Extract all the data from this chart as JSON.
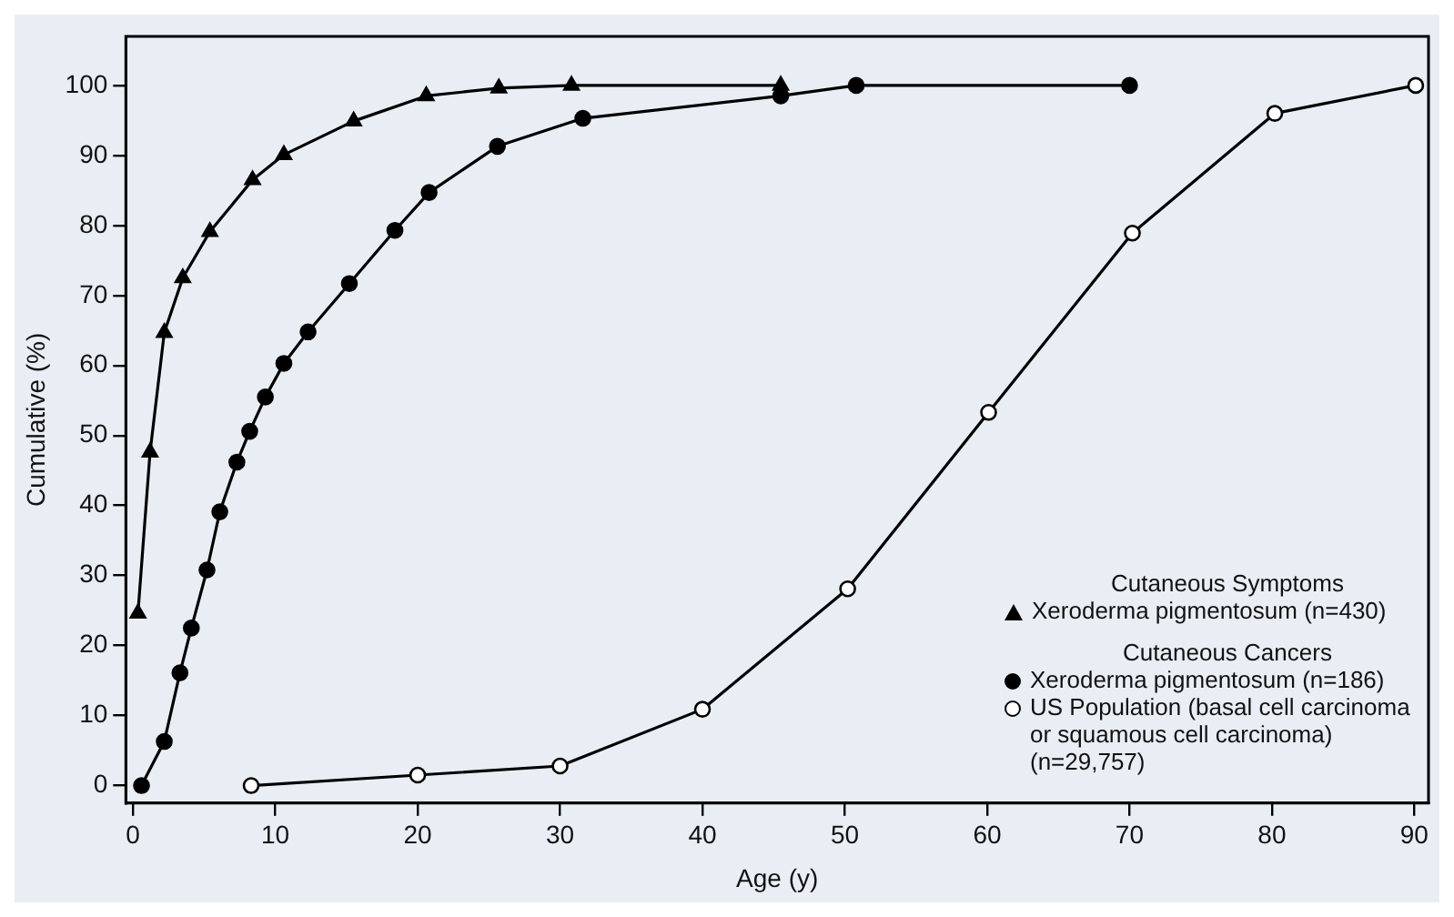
{
  "chart_data": {
    "type": "line",
    "xlabel": "Age (y)",
    "ylabel": "Cumulative (%)",
    "xlim": [
      -0.5,
      91
    ],
    "ylim": [
      -2.5,
      107
    ],
    "xticks": [
      0,
      10,
      20,
      30,
      40,
      50,
      60,
      70,
      80,
      90
    ],
    "yticks": [
      0,
      10,
      20,
      30,
      40,
      50,
      60,
      70,
      80,
      90,
      100
    ],
    "grid": false,
    "legend": "bottom right",
    "line_style": "solid",
    "annotations": [
      "Cutaneous Symptoms",
      "Cutaneous Cancers"
    ],
    "series": [
      {
        "name": "Xeroderma pigmentosum (n=430)",
        "color": "#000000",
        "marker": "triangle",
        "x": [
          0.35,
          1.2,
          2.2,
          3.5,
          5.4,
          8.4,
          10.6,
          15.5,
          20.6,
          25.7,
          30.8,
          45.5
        ],
        "values": [
          24.6,
          47.6,
          64.7,
          72.5,
          79.1,
          86.5,
          90.1,
          94.9,
          98.5,
          99.6,
          100,
          100
        ]
      },
      {
        "name": "Xeroderma pigmentosum (n=186)",
        "color": "#000000",
        "marker": "circle",
        "x": [
          0.6,
          2.2,
          3.3,
          4.1,
          5.2,
          6.1,
          7.3,
          8.2,
          9.3,
          10.6,
          12.3,
          15.2,
          18.4,
          20.8,
          25.6,
          31.6,
          45.5,
          50.8,
          70
        ],
        "values": [
          0,
          6.3,
          16.1,
          22.5,
          30.8,
          39.1,
          46.2,
          50.6,
          55.5,
          60.3,
          64.8,
          71.7,
          79.3,
          84.7,
          91.3,
          95.3,
          98.5,
          100,
          100
        ]
      },
      {
        "name": "US Population (basal cell carcinoma or squamous cell carcinoma) (n=29,757)",
        "color": "#000000",
        "marker": "circle",
        "colors": [
          "#ffffff",
          "#ffffff",
          "#ffffff",
          "#ffffff",
          "#ffffff",
          "#ffffff",
          "#ffffff",
          "#ffffff",
          "#ffffff"
        ],
        "x": [
          8.3,
          20,
          30,
          40,
          50.2,
          60.1,
          70.2,
          80.2,
          90.1
        ],
        "values": [
          0,
          1.5,
          2.8,
          10.9,
          28.1,
          53.3,
          78.9,
          96,
          100
        ]
      }
    ]
  }
}
